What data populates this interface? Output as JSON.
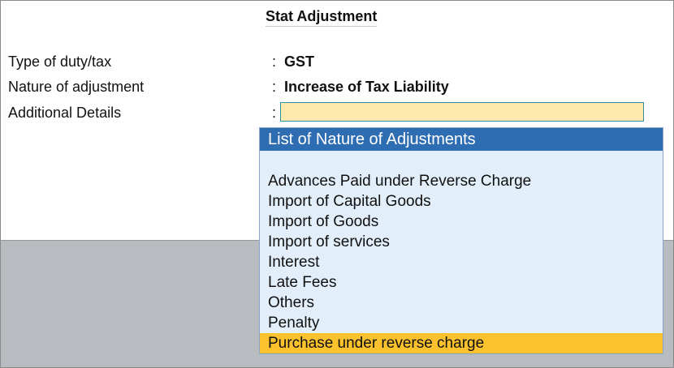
{
  "screen": {
    "title": "Stat Adjustment"
  },
  "fields": [
    {
      "label": "Type of duty/tax",
      "colon": ":",
      "value": "GST"
    },
    {
      "label": "Nature of adjustment",
      "colon": ":",
      "value": "Increase of Tax Liability"
    },
    {
      "label": "Additional Details",
      "colon": ":",
      "value": ""
    }
  ],
  "popup": {
    "title": "List of Nature of Adjustments",
    "items": [
      "Advances Paid under Reverse Charge",
      "Import of Capital Goods",
      "Import of Goods",
      "Import of services",
      "Interest",
      "Late Fees",
      "Others",
      "Penalty",
      "Purchase under reverse charge"
    ],
    "selected": "Purchase under reverse charge"
  },
  "colors": {
    "popup_header_bg": "#2f6db3",
    "popup_bg": "#e2eef9",
    "selected_item_bg": "#fcc22e",
    "input_bg": "#fde9ae",
    "background_gray": "#b8bcc0"
  }
}
